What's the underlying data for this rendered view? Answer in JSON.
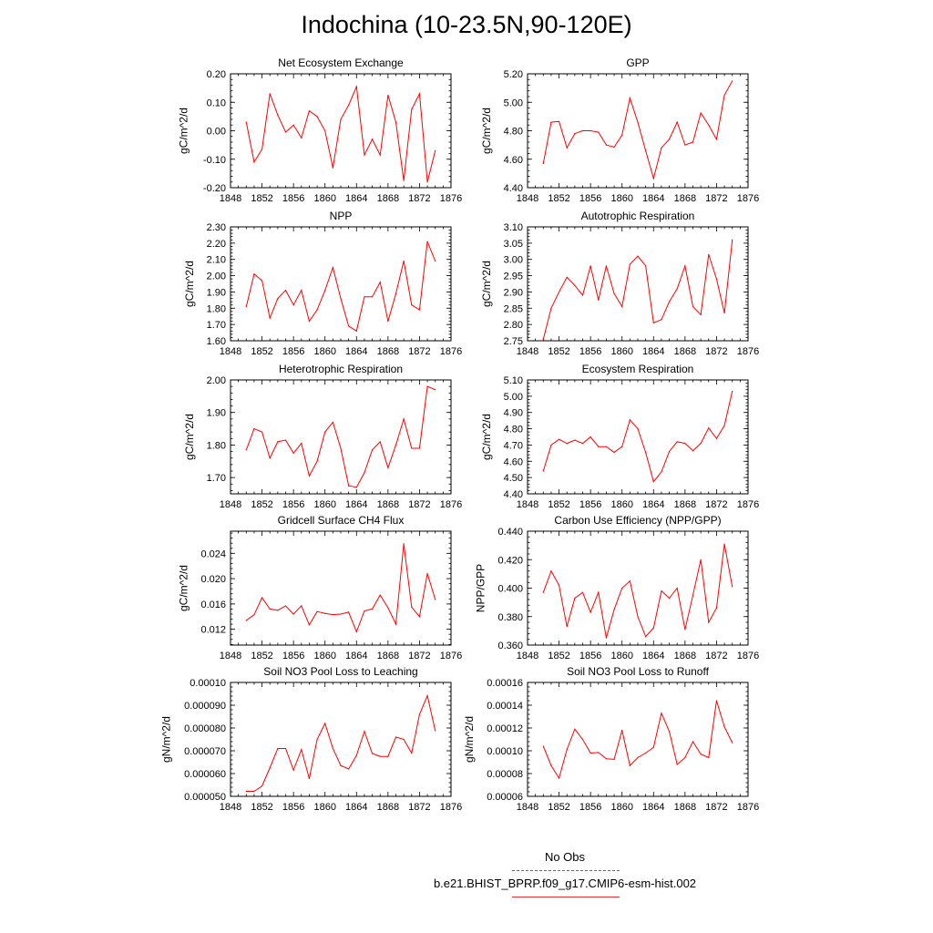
{
  "page": {
    "title": "Indochina (10-23.5N,90-120E)",
    "legend": [
      {
        "label": "No Obs",
        "color": "#5b5bd6",
        "style": "dashed"
      },
      {
        "label": "b.e21.BHIST_BPRP.f09_g17.CMIP6-esm-hist.002",
        "color": "#e03030",
        "style": "solid"
      }
    ]
  },
  "chart_data": [
    {
      "type": "line",
      "title": "Net Ecosystem Exchange",
      "ylabel": "gC/m^2/d",
      "xlim": [
        1848,
        1876
      ],
      "xticks": [
        "1848",
        "1852",
        "1856",
        "1860",
        "1864",
        "1868",
        "1872",
        "1876"
      ],
      "ylim": [
        -0.2,
        0.2
      ],
      "yticks": [
        "-0.20",
        "-0.10",
        "0.00",
        "0.10",
        "0.20"
      ],
      "series": [
        {
          "color": "#ff0000",
          "x": [
            1850,
            1851,
            1852,
            1853,
            1854,
            1855,
            1856,
            1857,
            1858,
            1859,
            1860,
            1861,
            1862,
            1863,
            1864,
            1865,
            1866,
            1867,
            1868,
            1869,
            1870,
            1871,
            1872,
            1873,
            1874
          ],
          "values": [
            0.03,
            -0.11,
            -0.065,
            0.13,
            0.055,
            -0.005,
            0.02,
            -0.025,
            0.07,
            0.05,
            0.0,
            -0.13,
            0.04,
            0.09,
            0.155,
            -0.085,
            -0.03,
            -0.085,
            0.125,
            0.03,
            -0.175,
            0.075,
            0.13,
            -0.18,
            -0.07
          ]
        }
      ]
    },
    {
      "type": "line",
      "title": "GPP",
      "ylabel": "gC/m^2/d",
      "xlim": [
        1848,
        1876
      ],
      "xticks": [
        "1848",
        "1852",
        "1856",
        "1860",
        "1864",
        "1868",
        "1872",
        "1876"
      ],
      "ylim": [
        4.4,
        5.2
      ],
      "yticks": [
        "4.40",
        "4.60",
        "4.80",
        "5.00",
        "5.20"
      ],
      "series": [
        {
          "color": "#ff0000",
          "x": [
            1850,
            1851,
            1852,
            1853,
            1854,
            1855,
            1856,
            1857,
            1858,
            1859,
            1860,
            1861,
            1862,
            1863,
            1864,
            1865,
            1866,
            1867,
            1868,
            1869,
            1870,
            1871,
            1872,
            1873,
            1874
          ],
          "values": [
            4.57,
            4.86,
            4.865,
            4.68,
            4.78,
            4.8,
            4.8,
            4.79,
            4.7,
            4.685,
            4.77,
            5.03,
            4.86,
            4.66,
            4.465,
            4.68,
            4.74,
            4.86,
            4.7,
            4.72,
            4.925,
            4.84,
            4.74,
            5.05,
            5.15
          ]
        }
      ]
    },
    {
      "type": "line",
      "title": "NPP",
      "ylabel": "gC/m^2/d",
      "xlim": [
        1848,
        1876
      ],
      "xticks": [
        "1848",
        "1852",
        "1856",
        "1860",
        "1864",
        "1868",
        "1872",
        "1876"
      ],
      "ylim": [
        1.6,
        2.3
      ],
      "yticks": [
        "1.60",
        "1.70",
        "1.80",
        "1.90",
        "2.00",
        "2.10",
        "2.20",
        "2.30"
      ],
      "series": [
        {
          "color": "#ff0000",
          "x": [
            1850,
            1851,
            1852,
            1853,
            1854,
            1855,
            1856,
            1857,
            1858,
            1859,
            1860,
            1861,
            1862,
            1863,
            1864,
            1865,
            1866,
            1867,
            1868,
            1869,
            1870,
            1871,
            1872,
            1873,
            1874
          ],
          "values": [
            1.81,
            2.01,
            1.97,
            1.74,
            1.86,
            1.91,
            1.82,
            1.91,
            1.72,
            1.79,
            1.91,
            2.05,
            1.86,
            1.69,
            1.66,
            1.87,
            1.87,
            1.96,
            1.72,
            1.89,
            2.09,
            1.82,
            1.79,
            2.21,
            2.09
          ]
        }
      ]
    },
    {
      "type": "line",
      "title": "Autotrophic Respiration",
      "ylabel": "gC/m^2/d",
      "xlim": [
        1848,
        1876
      ],
      "xticks": [
        "1848",
        "1852",
        "1856",
        "1860",
        "1864",
        "1868",
        "1872",
        "1876"
      ],
      "ylim": [
        2.75,
        3.1
      ],
      "yticks": [
        "2.75",
        "2.80",
        "2.85",
        "2.90",
        "2.95",
        "3.00",
        "3.05",
        "3.10"
      ],
      "series": [
        {
          "color": "#ff0000",
          "x": [
            1850,
            1851,
            1852,
            1853,
            1854,
            1855,
            1856,
            1857,
            1858,
            1859,
            1860,
            1861,
            1862,
            1863,
            1864,
            1865,
            1866,
            1867,
            1868,
            1869,
            1870,
            1871,
            1872,
            1873,
            1874
          ],
          "values": [
            2.755,
            2.85,
            2.9,
            2.945,
            2.92,
            2.89,
            2.98,
            2.875,
            2.98,
            2.895,
            2.855,
            2.985,
            3.01,
            2.98,
            2.805,
            2.815,
            2.87,
            2.91,
            2.98,
            2.855,
            2.83,
            3.015,
            2.94,
            2.835,
            3.06
          ]
        }
      ]
    },
    {
      "type": "line",
      "title": "Heterotrophic Respiration",
      "ylabel": "gC/m^2/d",
      "xlim": [
        1848,
        1876
      ],
      "xticks": [
        "1848",
        "1852",
        "1856",
        "1860",
        "1864",
        "1868",
        "1872",
        "1876"
      ],
      "ylim": [
        1.65,
        2.0
      ],
      "yticks": [
        "1.70",
        "1.80",
        "1.90",
        "2.00"
      ],
      "series": [
        {
          "color": "#ff0000",
          "x": [
            1850,
            1851,
            1852,
            1853,
            1854,
            1855,
            1856,
            1857,
            1858,
            1859,
            1860,
            1861,
            1862,
            1863,
            1864,
            1865,
            1866,
            1867,
            1868,
            1869,
            1870,
            1871,
            1872,
            1873,
            1874
          ],
          "values": [
            1.785,
            1.85,
            1.84,
            1.76,
            1.81,
            1.815,
            1.775,
            1.805,
            1.705,
            1.75,
            1.84,
            1.87,
            1.79,
            1.675,
            1.67,
            1.715,
            1.785,
            1.81,
            1.73,
            1.8,
            1.88,
            1.79,
            1.79,
            1.98,
            1.97
          ]
        }
      ]
    },
    {
      "type": "line",
      "title": "Ecosystem Respiration",
      "ylabel": "gC/m^2/d",
      "xlim": [
        1848,
        1876
      ],
      "xticks": [
        "1848",
        "1852",
        "1856",
        "1860",
        "1864",
        "1868",
        "1872",
        "1876"
      ],
      "ylim": [
        4.4,
        5.1
      ],
      "yticks": [
        "4.40",
        "4.50",
        "4.60",
        "4.70",
        "4.80",
        "4.90",
        "5.00",
        "5.10"
      ],
      "series": [
        {
          "color": "#ff0000",
          "x": [
            1850,
            1851,
            1852,
            1853,
            1854,
            1855,
            1856,
            1857,
            1858,
            1859,
            1860,
            1861,
            1862,
            1863,
            1864,
            1865,
            1866,
            1867,
            1868,
            1869,
            1870,
            1871,
            1872,
            1873,
            1874
          ],
          "values": [
            4.54,
            4.7,
            4.735,
            4.71,
            4.73,
            4.71,
            4.75,
            4.69,
            4.69,
            4.655,
            4.69,
            4.855,
            4.8,
            4.655,
            4.475,
            4.535,
            4.66,
            4.72,
            4.71,
            4.665,
            4.71,
            4.805,
            4.74,
            4.82,
            5.03
          ]
        }
      ]
    },
    {
      "type": "line",
      "title": "Gridcell Surface CH4 Flux",
      "ylabel": "gC/m^2/d",
      "xlim": [
        1848,
        1876
      ],
      "xticks": [
        "1848",
        "1852",
        "1856",
        "1860",
        "1864",
        "1868",
        "1872",
        "1876"
      ],
      "ylim": [
        0.0095,
        0.0275
      ],
      "yticks": [
        "0.012",
        "0.016",
        "0.020",
        "0.024"
      ],
      "series": [
        {
          "color": "#ff0000",
          "x": [
            1850,
            1851,
            1852,
            1853,
            1854,
            1855,
            1856,
            1857,
            1858,
            1859,
            1860,
            1861,
            1862,
            1863,
            1864,
            1865,
            1866,
            1867,
            1868,
            1869,
            1870,
            1871,
            1872,
            1873,
            1874
          ],
          "values": [
            0.0134,
            0.0143,
            0.017,
            0.0152,
            0.015,
            0.0157,
            0.0144,
            0.0157,
            0.0127,
            0.0148,
            0.0145,
            0.0143,
            0.0144,
            0.0147,
            0.0116,
            0.0149,
            0.0152,
            0.0174,
            0.0154,
            0.0128,
            0.0255,
            0.0155,
            0.014,
            0.0208,
            0.0167
          ]
        }
      ]
    },
    {
      "type": "line",
      "title": "Carbon Use Efficiency (NPP/GPP)",
      "ylabel": "NPP/GPP",
      "xlim": [
        1848,
        1876
      ],
      "xticks": [
        "1848",
        "1852",
        "1856",
        "1860",
        "1864",
        "1868",
        "1872",
        "1876"
      ],
      "ylim": [
        0.36,
        0.44
      ],
      "yticks": [
        "0.360",
        "0.380",
        "0.400",
        "0.420",
        "0.440"
      ],
      "series": [
        {
          "color": "#ff0000",
          "x": [
            1850,
            1851,
            1852,
            1853,
            1854,
            1855,
            1856,
            1857,
            1858,
            1859,
            1860,
            1861,
            1862,
            1863,
            1864,
            1865,
            1866,
            1867,
            1868,
            1869,
            1870,
            1871,
            1872,
            1873,
            1874
          ],
          "values": [
            0.397,
            0.412,
            0.402,
            0.373,
            0.393,
            0.397,
            0.383,
            0.397,
            0.365,
            0.385,
            0.4,
            0.405,
            0.38,
            0.366,
            0.372,
            0.398,
            0.393,
            0.4,
            0.371,
            0.395,
            0.42,
            0.376,
            0.386,
            0.431,
            0.401
          ]
        }
      ]
    },
    {
      "type": "line",
      "title": "Soil NO3 Pool Loss to Leaching",
      "ylabel": "gN/m^2/d",
      "xlim": [
        1848,
        1876
      ],
      "xticks": [
        "1848",
        "1852",
        "1856",
        "1860",
        "1864",
        "1868",
        "1872",
        "1876"
      ],
      "ylim": [
        5e-05,
        0.0001
      ],
      "yticks": [
        "0.000050",
        "0.000060",
        "0.000070",
        "0.000080",
        "0.000090",
        "0.00010"
      ],
      "series": [
        {
          "color": "#ff0000",
          "x": [
            1850,
            1851,
            1852,
            1853,
            1854,
            1855,
            1856,
            1857,
            1858,
            1859,
            1860,
            1861,
            1862,
            1863,
            1864,
            1865,
            1866,
            1867,
            1868,
            1869,
            1870,
            1871,
            1872,
            1873,
            1874
          ],
          "values": [
            5.22e-05,
            5.22e-05,
            5.45e-05,
            6.25e-05,
            7.1e-05,
            7.1e-05,
            6.15e-05,
            7.05e-05,
            5.78e-05,
            7.5e-05,
            8.2e-05,
            7.1e-05,
            6.35e-05,
            6.2e-05,
            6.8e-05,
            7.85e-05,
            6.88e-05,
            6.75e-05,
            6.75e-05,
            7.6e-05,
            7.5e-05,
            6.9e-05,
            8.6e-05,
            9.42e-05,
            7.88e-05
          ]
        }
      ]
    },
    {
      "type": "line",
      "title": "Soil NO3 Pool Loss to Runoff",
      "ylabel": "gN/m^2/d",
      "xlim": [
        1848,
        1876
      ],
      "xticks": [
        "1848",
        "1852",
        "1856",
        "1860",
        "1864",
        "1868",
        "1872",
        "1876"
      ],
      "ylim": [
        6e-05,
        0.00016
      ],
      "yticks": [
        "0.00006",
        "0.00008",
        "0.00010",
        "0.00012",
        "0.00014",
        "0.00016"
      ],
      "series": [
        {
          "color": "#ff0000",
          "x": [
            1850,
            1851,
            1852,
            1853,
            1854,
            1855,
            1856,
            1857,
            1858,
            1859,
            1860,
            1861,
            1862,
            1863,
            1864,
            1865,
            1866,
            1867,
            1868,
            1869,
            1870,
            1871,
            1872,
            1873,
            1874
          ],
          "values": [
            0.000104,
            8.7e-05,
            7.6e-05,
            0.000101,
            0.000119,
            0.00011,
            9.8e-05,
            9.85e-05,
            9.3e-05,
            9.25e-05,
            0.000118,
            8.7e-05,
            9.4e-05,
            9.8e-05,
            0.000103,
            0.000133,
            0.000117,
            8.8e-05,
            9.4e-05,
            0.000108,
            9.7e-05,
            9.4e-05,
            0.000144,
            0.000121,
            0.000107
          ]
        }
      ]
    }
  ]
}
